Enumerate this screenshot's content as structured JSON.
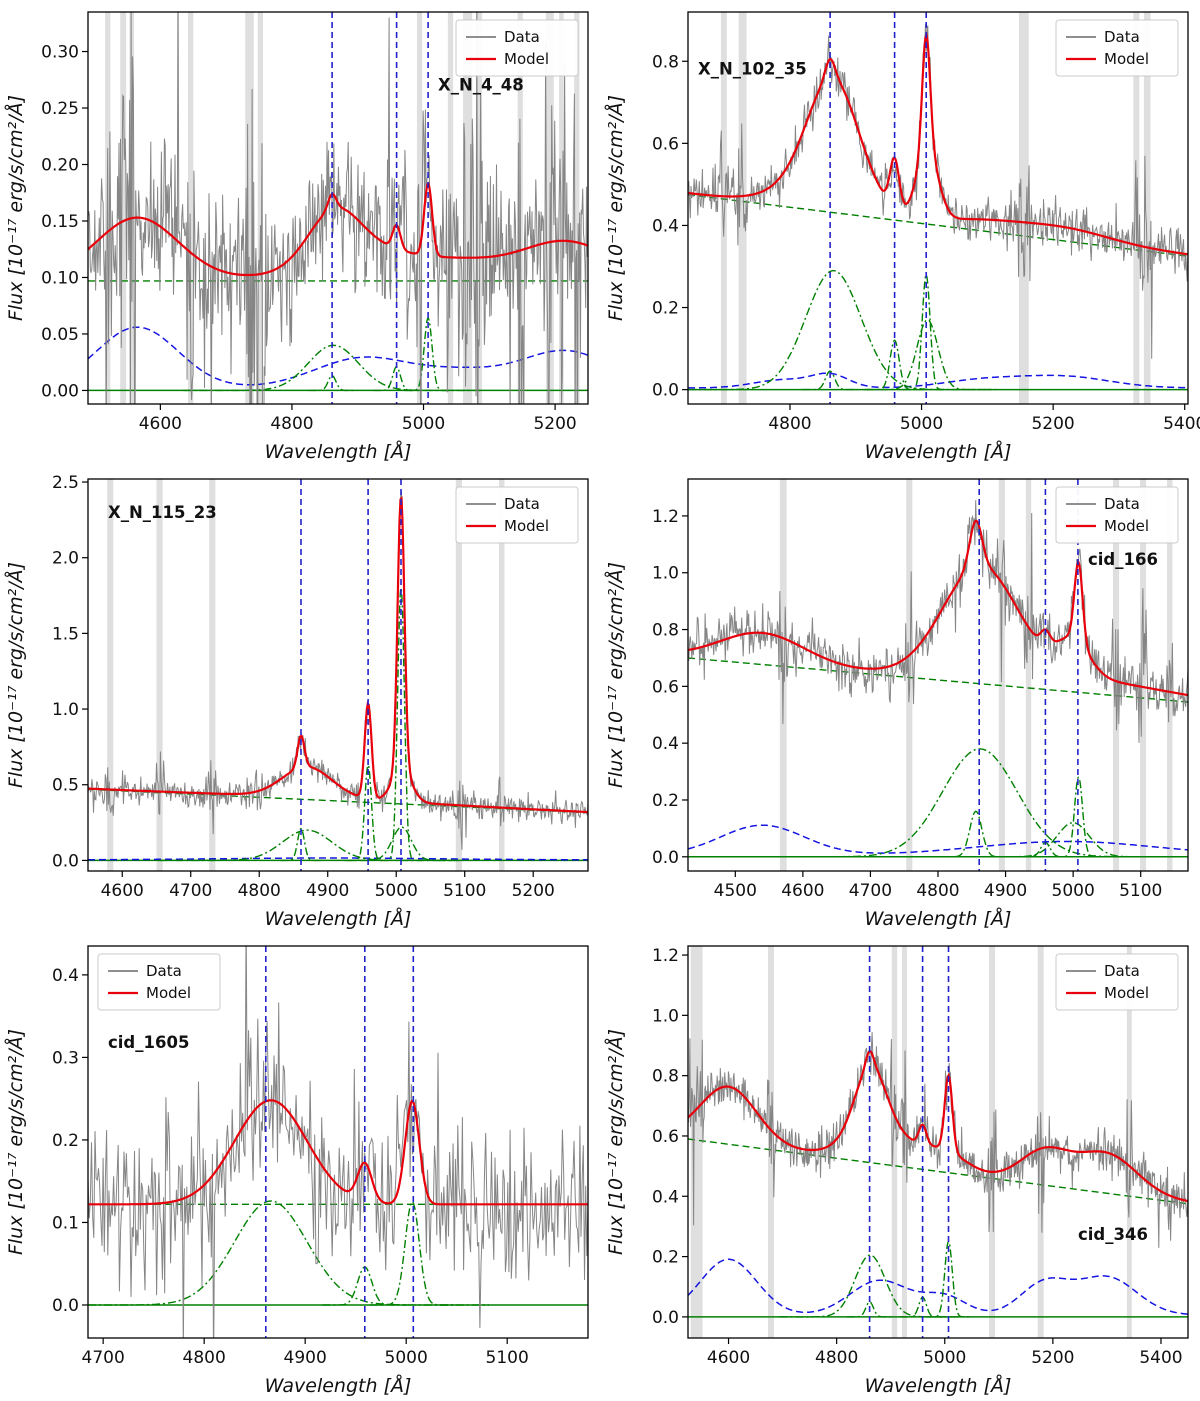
{
  "figure": {
    "background": "#ffffff",
    "description": "Six-panel AGN optical spectra with Hβ / [OIII] line fits"
  },
  "colors": {
    "data": "#7f7f7f",
    "model": "#e8000b",
    "component_green": "#008000",
    "component_blue": "#0a0ae0",
    "vline": "#2222cc",
    "mask": "#c4c4c4",
    "frame": "#000000",
    "legend_border": "#c9c9c9"
  },
  "legend": {
    "data_label": "Data",
    "model_label": "Model"
  },
  "axes": {
    "xlabel": "Wavelength [Å]",
    "ylabel": "Flux [10⁻¹⁷ erg/s/cm²/Å]"
  },
  "chart_data": [
    {
      "type": "line",
      "title": "X_N_4_48",
      "xlim": [
        4490,
        5250
      ],
      "ylim": [
        -0.012,
        0.335
      ],
      "xticks": [
        4600,
        4800,
        5000,
        5200
      ],
      "yticks": [
        0.0,
        0.05,
        0.1,
        0.15,
        0.2,
        0.25,
        0.3
      ],
      "ydec": 2,
      "vlines": [
        4861,
        4959,
        5007
      ],
      "continuum": {
        "start": 0.097,
        "end": 0.097
      },
      "feii": {
        "base": 0.002,
        "gaussians": [
          {
            "c": 4565,
            "a": 0.054,
            "s": 62
          },
          {
            "c": 4910,
            "a": 0.027,
            "s": 75
          },
          {
            "c": 5060,
            "a": 0.012,
            "s": 60
          },
          {
            "c": 5215,
            "a": 0.033,
            "s": 70
          }
        ]
      },
      "emission": [
        {
          "c": 4863,
          "a": 0.04,
          "s": 38
        },
        {
          "c": 4861,
          "a": 0.013,
          "s": 6
        },
        {
          "c": 4959,
          "a": 0.021,
          "s": 6
        },
        {
          "c": 5007,
          "a": 0.064,
          "s": 6
        }
      ],
      "masks": [
        [
          4516,
          4524
        ],
        [
          4539,
          4548
        ],
        [
          4553,
          4560
        ],
        [
          4642,
          4650
        ],
        [
          4729,
          4742
        ],
        [
          4748,
          4756
        ],
        [
          4990,
          4998
        ],
        [
          5037,
          5045
        ],
        [
          5060,
          5074
        ],
        [
          5081,
          5089
        ],
        [
          5143,
          5151
        ],
        [
          5186,
          5198
        ],
        [
          5206,
          5213
        ],
        [
          5229,
          5237
        ]
      ],
      "noise": 0.032,
      "legend_pos": "top-right",
      "label_pos": [
        0.7,
        0.2
      ]
    },
    {
      "type": "line",
      "title": "X_N_102_35",
      "xlim": [
        4645,
        5405
      ],
      "ylim": [
        -0.035,
        0.92
      ],
      "xticks": [
        4800,
        5000,
        5200,
        5400
      ],
      "yticks": [
        0.0,
        0.2,
        0.4,
        0.6,
        0.8
      ],
      "ydec": 1,
      "vlines": [
        4861,
        4959,
        5007
      ],
      "continuum": {
        "start": 0.475,
        "end": 0.325
      },
      "feii": {
        "base": 0.004,
        "gaussians": [
          {
            "c": 4790,
            "a": 0.02,
            "s": 45
          },
          {
            "c": 4862,
            "a": 0.03,
            "s": 28
          },
          {
            "c": 5090,
            "a": 0.018,
            "s": 60
          },
          {
            "c": 5215,
            "a": 0.028,
            "s": 70
          }
        ]
      },
      "emission": [
        {
          "c": 4866,
          "a": 0.29,
          "s": 42
        },
        {
          "c": 4861,
          "a": 0.045,
          "s": 7
        },
        {
          "c": 4959,
          "a": 0.12,
          "s": 7
        },
        {
          "c": 5007,
          "a": 0.28,
          "s": 6
        },
        {
          "c": 5009,
          "a": 0.17,
          "s": 16
        }
      ],
      "masks": [
        [
          4695,
          4704
        ],
        [
          4722,
          4734
        ],
        [
          5148,
          5163
        ],
        [
          5322,
          5331
        ],
        [
          5338,
          5348
        ]
      ],
      "noise": 0.028,
      "legend_pos": "top-right",
      "label_pos": [
        0.02,
        0.16
      ]
    },
    {
      "type": "line",
      "title": "X_N_115_23",
      "xlim": [
        4550,
        5280
      ],
      "ylim": [
        -0.07,
        2.52
      ],
      "xticks": [
        4600,
        4700,
        4800,
        4900,
        5000,
        5100,
        5200
      ],
      "yticks": [
        0.0,
        0.5,
        1.0,
        1.5,
        2.0,
        2.5
      ],
      "ydec": 1,
      "vlines": [
        4861,
        4959,
        5007
      ],
      "continuum": {
        "start": 0.47,
        "end": 0.315
      },
      "feii": {
        "base": 0.004,
        "gaussians": [
          {
            "c": 4900,
            "a": 0.012,
            "s": 150
          }
        ]
      },
      "emission": [
        {
          "c": 4870,
          "a": 0.2,
          "s": 36
        },
        {
          "c": 4861,
          "a": 0.21,
          "s": 5
        },
        {
          "c": 4959,
          "a": 0.63,
          "s": 5
        },
        {
          "c": 5007,
          "a": 1.8,
          "s": 5
        },
        {
          "c": 5008,
          "a": 0.22,
          "s": 14
        }
      ],
      "masks": [
        [
          4578,
          4587
        ],
        [
          4650,
          4659
        ],
        [
          4727,
          4736
        ],
        [
          5087,
          5096
        ],
        [
          5150,
          5158
        ]
      ],
      "noise": 0.045,
      "legend_pos": "top-right",
      "label_pos": [
        0.04,
        0.1
      ]
    },
    {
      "type": "line",
      "title": "cid_166",
      "xlim": [
        4430,
        5170
      ],
      "ylim": [
        -0.05,
        1.33
      ],
      "xticks": [
        4500,
        4600,
        4700,
        4800,
        4900,
        5000,
        5100
      ],
      "yticks": [
        0.0,
        0.2,
        0.4,
        0.6,
        0.8,
        1.0,
        1.2
      ],
      "ydec": 1,
      "vlines": [
        4861,
        4959,
        5007
      ],
      "continuum": {
        "start": 0.7,
        "end": 0.545
      },
      "feii": {
        "base": 0.006,
        "gaussians": [
          {
            "c": 4540,
            "a": 0.105,
            "s": 62
          },
          {
            "c": 4990,
            "a": 0.048,
            "s": 130
          }
        ]
      },
      "emission": [
        {
          "c": 4862,
          "a": 0.38,
          "s": 55
        },
        {
          "c": 4856,
          "a": 0.16,
          "s": 9
        },
        {
          "c": 4959,
          "a": 0.05,
          "s": 7
        },
        {
          "c": 5000,
          "a": 0.12,
          "s": 24
        },
        {
          "c": 5008,
          "a": 0.28,
          "s": 6
        }
      ],
      "masks": [
        [
          4566,
          4576
        ],
        [
          4753,
          4762
        ],
        [
          4890,
          4899
        ],
        [
          4930,
          4938
        ],
        [
          5059,
          5068
        ],
        [
          5099,
          5108
        ],
        [
          5139,
          5147
        ]
      ],
      "noise": 0.042,
      "legend_pos": "top-right",
      "label_pos": [
        0.8,
        0.22
      ]
    },
    {
      "type": "line",
      "title": "cid_1605",
      "xlim": [
        4685,
        5180
      ],
      "ylim": [
        -0.04,
        0.435
      ],
      "xticks": [
        4700,
        4800,
        4900,
        5000,
        5100
      ],
      "yticks": [
        0.0,
        0.1,
        0.2,
        0.3,
        0.4
      ],
      "ydec": 1,
      "vlines": [
        4861,
        4959,
        5007
      ],
      "continuum": {
        "start": 0.122,
        "end": 0.122
      },
      "feii": {
        "base": 0,
        "gaussians": []
      },
      "emission": [
        {
          "c": 4866,
          "a": 0.126,
          "s": 36
        },
        {
          "c": 4959,
          "a": 0.046,
          "s": 7
        },
        {
          "c": 5006,
          "a": 0.125,
          "s": 7
        }
      ],
      "masks": [],
      "noise": 0.05,
      "legend_pos": "top-left",
      "label_pos": [
        0.04,
        0.26
      ]
    },
    {
      "type": "line",
      "title": "cid_346",
      "xlim": [
        4525,
        5450
      ],
      "ylim": [
        -0.07,
        1.23
      ],
      "xticks": [
        4600,
        4800,
        5000,
        5200,
        5400
      ],
      "yticks": [
        0.0,
        0.2,
        0.4,
        0.6,
        0.8,
        1.0,
        1.2
      ],
      "ydec": 1,
      "vlines": [
        4861,
        4959,
        5007
      ],
      "continuum": {
        "start": 0.59,
        "end": 0.375
      },
      "feii": {
        "base": 0.006,
        "gaussians": [
          {
            "c": 4600,
            "a": 0.185,
            "s": 52
          },
          {
            "c": 4880,
            "a": 0.115,
            "s": 55
          },
          {
            "c": 5000,
            "a": 0.06,
            "s": 40
          },
          {
            "c": 5185,
            "a": 0.105,
            "s": 45
          },
          {
            "c": 5300,
            "a": 0.125,
            "s": 55
          }
        ]
      },
      "emission": [
        {
          "c": 4862,
          "a": 0.205,
          "s": 28
        },
        {
          "c": 4861,
          "a": 0.05,
          "s": 7
        },
        {
          "c": 4959,
          "a": 0.065,
          "s": 7
        },
        {
          "c": 5007,
          "a": 0.25,
          "s": 7
        }
      ],
      "masks": [
        [
          4530,
          4552
        ],
        [
          4673,
          4684
        ],
        [
          4902,
          4912
        ],
        [
          4921,
          4930
        ],
        [
          5082,
          5093
        ],
        [
          5172,
          5183
        ],
        [
          5337,
          5346
        ]
      ],
      "noise": 0.035,
      "legend_pos": "top-right",
      "label_pos": [
        0.78,
        0.75
      ]
    }
  ]
}
